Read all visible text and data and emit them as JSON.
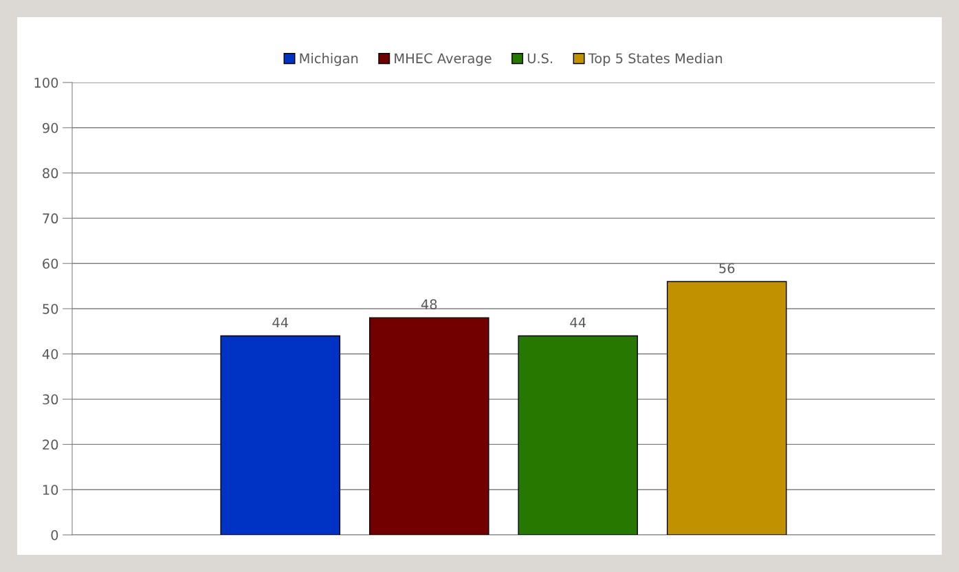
{
  "chart_data": {
    "type": "bar",
    "categories": [
      null
    ],
    "series": [
      {
        "name": "Michigan",
        "color": "#0033c4",
        "values": [
          44
        ]
      },
      {
        "name": "MHEC Average",
        "color": "#720000",
        "values": [
          48
        ]
      },
      {
        "name": "U.S.",
        "color": "#267800",
        "values": [
          44
        ]
      },
      {
        "name": "Top 5 States Median",
        "color": "#c19100",
        "values": [
          56
        ]
      }
    ],
    "ylim": [
      0,
      100
    ],
    "yticks": [
      0,
      10,
      20,
      30,
      40,
      50,
      60,
      70,
      80,
      90,
      100
    ],
    "grid": "y",
    "legend": "top",
    "data_labels": true
  }
}
